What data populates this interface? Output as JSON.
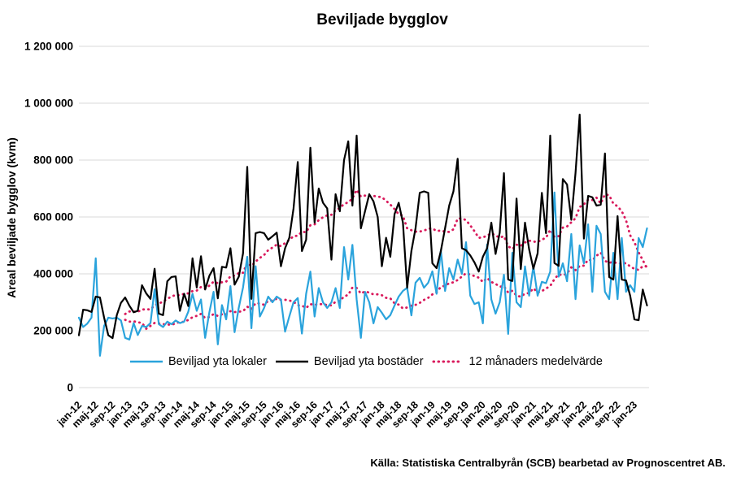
{
  "source": "Källa: Statistiska Centralbyrån (SCB) bearbetad av Prognoscentret AB.",
  "chart_data": {
    "type": "line",
    "title": "Beviljade bygglov",
    "ylabel": "Areal beviljade bygglov (kvm)",
    "xlabel": "",
    "ylim": [
      0,
      1200000
    ],
    "grid": "horizontal",
    "legend_position": "bottom-inside",
    "y_ticks": [
      {
        "value": 0,
        "label": "0"
      },
      {
        "value": 200000,
        "label": "200 000"
      },
      {
        "value": 400000,
        "label": "400 000"
      },
      {
        "value": 600000,
        "label": "600 000"
      },
      {
        "value": 800000,
        "label": "800 000"
      },
      {
        "value": 1000000,
        "label": "1 000 000"
      },
      {
        "value": 1200000,
        "label": "1 200 000"
      }
    ],
    "x_tick_every": 4,
    "x_tick_labels": [
      "jan-12",
      "maj-12",
      "sep-12",
      "jan-13",
      "maj-13",
      "sep-13",
      "jan-14",
      "maj-14",
      "sep-14",
      "jan-15",
      "maj-15",
      "sep-15",
      "jan-16",
      "maj-16",
      "sep-16",
      "jan-17",
      "maj-17",
      "sep-17",
      "jan-18",
      "maj-18",
      "sep-18",
      "jan-19",
      "maj-19",
      "sep-19",
      "jan-20",
      "maj-20",
      "sep-20",
      "jan-21",
      "maj-21",
      "sep-21",
      "jan-22",
      "maj-22",
      "sep-22",
      "jan-23"
    ],
    "months_start": "jan-12",
    "months_end": "apr-23",
    "series": [
      {
        "name": "Beviljad yta lokaler",
        "color": "#2AA3DC",
        "style": "solid",
        "values": [
          246000,
          213000,
          225000,
          246000,
          455000,
          112000,
          217000,
          246000,
          243000,
          246000,
          236000,
          175000,
          169000,
          227000,
          185000,
          217000,
          213000,
          227000,
          346000,
          223000,
          213000,
          232000,
          223000,
          236000,
          227000,
          232000,
          267000,
          330000,
          270000,
          310000,
          175000,
          265000,
          337000,
          152000,
          290000,
          240000,
          357000,
          195000,
          281000,
          352000,
          460000,
          209000,
          427000,
          250000,
          280000,
          320000,
          300000,
          320000,
          310000,
          197000,
          250000,
          300000,
          315000,
          190000,
          330000,
          408000,
          250000,
          350000,
          300000,
          280000,
          300000,
          350000,
          280000,
          494000,
          380000,
          502000,
          310000,
          175000,
          337000,
          300000,
          226000,
          283000,
          263000,
          240000,
          255000,
          289000,
          320000,
          340000,
          351000,
          254000,
          369000,
          386000,
          351000,
          369000,
          409000,
          330000,
          483000,
          340000,
          420000,
          380000,
          450000,
          400000,
          511000,
          323000,
          294000,
          300000,
          226000,
          503000,
          310000,
          260000,
          300000,
          397000,
          189000,
          474000,
          300000,
          283000,
          426000,
          323000,
          426000,
          323000,
          372000,
          367000,
          408000,
          686000,
          390000,
          437000,
          374000,
          540000,
          311000,
          500000,
          437000,
          574000,
          337000,
          569000,
          540000,
          337000,
          311000,
          474000,
          311000,
          526000,
          337000,
          360000,
          337000,
          526000,
          494000,
          560000
        ]
      },
      {
        "name": "Beviljad yta bostäder",
        "color": "#000000",
        "style": "solid",
        "values": [
          184000,
          274000,
          272000,
          266000,
          320000,
          317000,
          246000,
          184000,
          174000,
          255000,
          298000,
          317000,
          288000,
          265000,
          270000,
          360000,
          331000,
          312000,
          418000,
          260000,
          255000,
          374000,
          389000,
          391000,
          270000,
          330000,
          287000,
          455000,
          352000,
          462000,
          345000,
          393000,
          420000,
          314000,
          425000,
          422000,
          490000,
          362000,
          390000,
          472000,
          776000,
          312000,
          543000,
          547000,
          543000,
          520000,
          532000,
          545000,
          427000,
          490000,
          527000,
          630000,
          793000,
          480000,
          520000,
          843000,
          580000,
          700000,
          650000,
          630000,
          450000,
          680000,
          620000,
          800000,
          866000,
          640000,
          886000,
          560000,
          620000,
          680000,
          655000,
          600000,
          427000,
          527000,
          460000,
          610000,
          650000,
          580000,
          351000,
          480000,
          560000,
          685000,
          690000,
          685000,
          437000,
          420000,
          480000,
          560000,
          640000,
          690000,
          805000,
          490000,
          483000,
          465000,
          440000,
          408000,
          460000,
          490000,
          580000,
          470000,
          545000,
          754000,
          380000,
          375000,
          665000,
          417000,
          580000,
          486000,
          418000,
          472000,
          685000,
          543000,
          886000,
          438000,
          428000,
          733000,
          714000,
          590000,
          755000,
          960000,
          524000,
          674000,
          669000,
          640000,
          643000,
          823000,
          389000,
          380000,
          603000,
          380000,
          377000,
          323000,
          240000,
          237000,
          345000,
          289000
        ]
      }
    ],
    "average_series": {
      "name": "12 månaders medelvärde",
      "color": "#D91A5C",
      "style": "dotted",
      "window": 12,
      "derived_from": "trailing 12-month mean of each plotted series (two dotted curves share this legend entry)"
    }
  }
}
